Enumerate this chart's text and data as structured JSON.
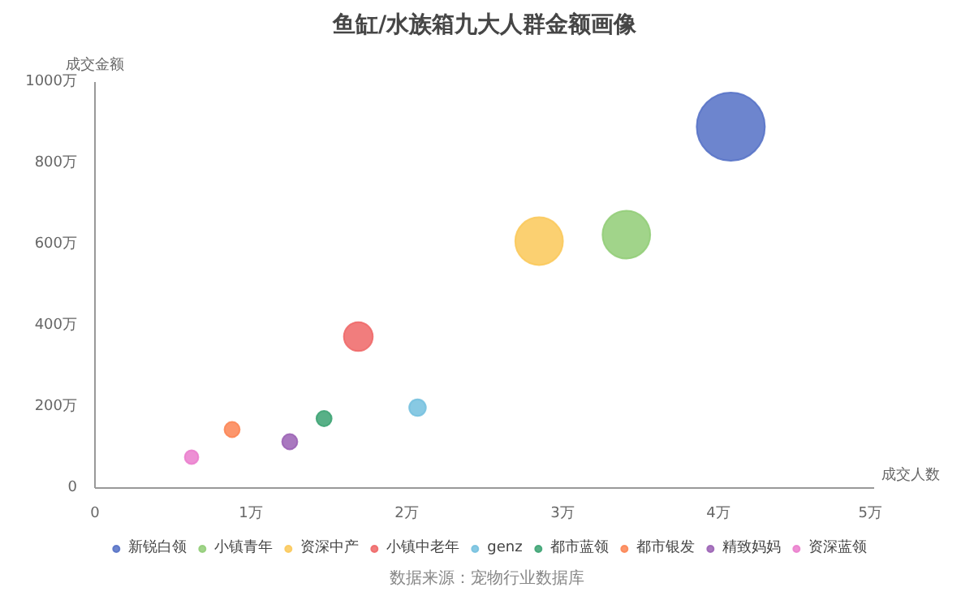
{
  "chart_data": {
    "type": "bubble",
    "title": "鱼缸/水族箱九大人群金额画像",
    "xlabel": "成交人数",
    "ylabel": "成交金额",
    "annotations": [
      "数据来源：宠物行业数据库"
    ],
    "xlim": [
      0,
      5
    ],
    "xticks": [
      0,
      {
        "value": 1,
        "label": "1万"
      },
      {
        "value": 2,
        "label": "2万"
      },
      {
        "value": 3,
        "label": "3万"
      },
      {
        "value": 4,
        "label": "4万"
      },
      {
        "value": 5,
        "label": "5万"
      }
    ],
    "ylim": [
      0,
      1000
    ],
    "yticks": [
      0,
      {
        "value": 200,
        "label": "200万"
      },
      {
        "value": 400,
        "label": "400万"
      },
      {
        "value": 600,
        "label": "600万"
      },
      {
        "value": 800,
        "label": "800万"
      },
      {
        "value": 1000,
        "label": "1000万"
      }
    ],
    "grid": false,
    "legend": "bottom",
    "marker": "circle",
    "series": [
      {
        "name": "新锐白领",
        "color": "#5470c6",
        "x": [
          4.08
        ],
        "values": [
          890
        ],
        "sizes": [
          1
        ]
      },
      {
        "name": "小镇青年",
        "color": "#91cc75",
        "x": [
          3.41
        ],
        "values": [
          624
        ],
        "sizes": [
          0.49
        ]
      },
      {
        "name": "资深中产",
        "color": "#fac858",
        "x": [
          2.85
        ],
        "values": [
          608
        ],
        "sizes": [
          0.49
        ]
      },
      {
        "name": "小镇中老年",
        "color": "#ee6666",
        "x": [
          1.69
        ],
        "values": [
          373
        ],
        "sizes": [
          0.18
        ]
      },
      {
        "name": "genz",
        "color": "#73c0de",
        "x": [
          2.07
        ],
        "values": [
          198
        ],
        "sizes": [
          0.06
        ]
      },
      {
        "name": "都市蓝领",
        "color": "#3ba272",
        "x": [
          1.47
        ],
        "values": [
          171
        ],
        "sizes": [
          0.05
        ]
      },
      {
        "name": "都市银发",
        "color": "#fc8452",
        "x": [
          0.88
        ],
        "values": [
          144
        ],
        "sizes": [
          0.05
        ]
      },
      {
        "name": "精致妈妈",
        "color": "#9a60b4",
        "x": [
          1.25
        ],
        "values": [
          114
        ],
        "sizes": [
          0.05
        ]
      },
      {
        "name": "资深蓝领",
        "color": "#ea7ccc",
        "x": [
          0.62
        ],
        "values": [
          76
        ],
        "sizes": [
          0.04
        ]
      }
    ]
  }
}
